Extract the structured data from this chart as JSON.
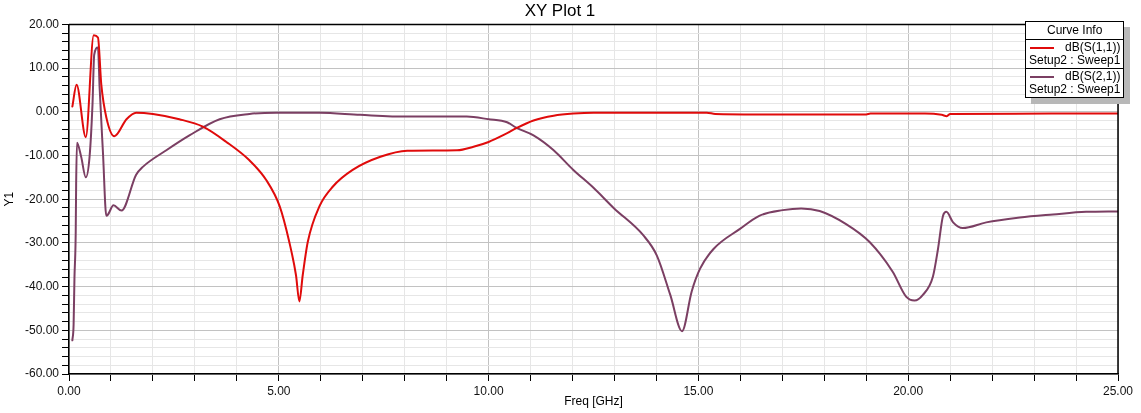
{
  "chart_data": {
    "type": "line",
    "title": "XY Plot 1",
    "xlabel": "Freq [GHz]",
    "ylabel": "Y1",
    "legend_title": "Curve Info",
    "series": [
      {
        "name": "dB(S(1,1))\nSetup2 : Sweep1",
        "color": "#e00b0b",
        "x": [
          0.08,
          0.18,
          0.4,
          0.59,
          0.69,
          0.77,
          0.89,
          1.08,
          1.37,
          1.6,
          2.0,
          2.63,
          3.19,
          3.75,
          4.3,
          4.7,
          5.02,
          5.25,
          5.41,
          5.49,
          5.57,
          5.69,
          5.97,
          6.29,
          6.76,
          7.42,
          8.06,
          9.25,
          9.64,
          10.0,
          10.36,
          10.67,
          11.07,
          11.55,
          12.02,
          12.5,
          15.2,
          15.4,
          16.4,
          19.0,
          19.1,
          20.4,
          20.8,
          20.92,
          21.0,
          25.0
        ],
        "values": [
          1.2,
          6.2,
          -5.8,
          17.5,
          17.0,
          6.2,
          -1.3,
          -5.6,
          -1.7,
          -0.2,
          -0.5,
          -1.7,
          -3.4,
          -6.9,
          -11.1,
          -15.6,
          -21.6,
          -29.8,
          -37.4,
          -43.4,
          -37.4,
          -29.8,
          -21.6,
          -17.1,
          -13.3,
          -10.3,
          -8.9,
          -8.8,
          -8.0,
          -6.9,
          -5.3,
          -3.7,
          -2.0,
          -0.9,
          -0.4,
          -0.2,
          -0.2,
          -0.5,
          -0.6,
          -0.6,
          -0.4,
          -0.4,
          -0.7,
          -1.0,
          -0.5,
          -0.4
        ]
      },
      {
        "name": "dB(S(2,1))\nSetup2 : Sweep1",
        "color": "#7b3f63",
        "x": [
          0.08,
          0.11,
          0.13,
          0.16,
          0.17,
          0.19,
          0.29,
          0.4,
          0.49,
          0.56,
          0.6,
          0.69,
          0.73,
          0.81,
          0.89,
          0.93,
          1.06,
          1.25,
          1.6,
          1.76,
          2.32,
          2.87,
          3.59,
          4.3,
          4.94,
          5.97,
          6.94,
          8.06,
          9.48,
          10.0,
          10.44,
          10.67,
          11.07,
          11.55,
          12.02,
          12.5,
          12.98,
          13.69,
          14.01,
          14.33,
          14.61,
          14.84,
          15.04,
          15.36,
          15.99,
          16.45,
          17.01,
          17.45,
          17.89,
          18.52,
          19.08,
          19.63,
          19.95,
          20.15,
          20.35,
          20.59,
          20.71,
          20.83,
          20.91,
          21.07,
          21.3,
          21.86,
          22.66,
          23.45,
          24.24,
          25.0
        ],
        "values": [
          -52.3,
          -48.6,
          -38.1,
          -27.6,
          -16.7,
          -7.1,
          -10.3,
          -15.0,
          -10.3,
          1.7,
          13.0,
          14.7,
          5.5,
          -9.5,
          -23.8,
          -23.5,
          -21.4,
          -22.6,
          -14.4,
          -12.6,
          -8.8,
          -5.4,
          -1.7,
          -0.5,
          -0.2,
          -0.2,
          -0.7,
          -1.1,
          -1.1,
          -1.7,
          -2.4,
          -3.7,
          -5.4,
          -8.8,
          -13.3,
          -17.4,
          -22.0,
          -28.3,
          -32.9,
          -41.9,
          -50.2,
          -41.1,
          -35.9,
          -31.4,
          -26.8,
          -23.8,
          -22.5,
          -22.1,
          -22.7,
          -25.7,
          -29.8,
          -36.6,
          -42.3,
          -43.2,
          -41.9,
          -37.7,
          -31.4,
          -23.8,
          -22.9,
          -25.3,
          -26.6,
          -25.3,
          -24.2,
          -23.5,
          -22.9,
          -22.8
        ]
      }
    ],
    "xlim": [
      0,
      25
    ],
    "xticks": [
      {
        "value": 0,
        "label": "0.00"
      },
      {
        "value": 1,
        "label": null
      },
      {
        "value": 2,
        "label": null
      },
      {
        "value": 3,
        "label": null
      },
      {
        "value": 4,
        "label": null
      },
      {
        "value": 5,
        "label": "5.00"
      },
      {
        "value": 6,
        "label": null
      },
      {
        "value": 7,
        "label": null
      },
      {
        "value": 8,
        "label": null
      },
      {
        "value": 9,
        "label": null
      },
      {
        "value": 10,
        "label": "10.00"
      },
      {
        "value": 11,
        "label": null
      },
      {
        "value": 12,
        "label": null
      },
      {
        "value": 13,
        "label": null
      },
      {
        "value": 14,
        "label": null
      },
      {
        "value": 15,
        "label": "15.00"
      },
      {
        "value": 16,
        "label": null
      },
      {
        "value": 17,
        "label": null
      },
      {
        "value": 18,
        "label": null
      },
      {
        "value": 19,
        "label": null
      },
      {
        "value": 20,
        "label": "20.00"
      },
      {
        "value": 21,
        "label": null
      },
      {
        "value": 22,
        "label": null
      },
      {
        "value": 23,
        "label": null
      },
      {
        "value": 24,
        "label": null
      },
      {
        "value": 25,
        "label": "25.00"
      }
    ],
    "ylim": [
      -60,
      20
    ],
    "yticks": [
      {
        "value": -60,
        "label": "-60.00"
      },
      {
        "value": -58,
        "label": null
      },
      {
        "value": -56,
        "label": null
      },
      {
        "value": -54,
        "label": null
      },
      {
        "value": -52,
        "label": null
      },
      {
        "value": -50,
        "label": "-50.00"
      },
      {
        "value": -48,
        "label": null
      },
      {
        "value": -46,
        "label": null
      },
      {
        "value": -44,
        "label": null
      },
      {
        "value": -42,
        "label": null
      },
      {
        "value": -40,
        "label": "-40.00"
      },
      {
        "value": -38,
        "label": null
      },
      {
        "value": -36,
        "label": null
      },
      {
        "value": -34,
        "label": null
      },
      {
        "value": -32,
        "label": null
      },
      {
        "value": -30,
        "label": "-30.00"
      },
      {
        "value": -28,
        "label": null
      },
      {
        "value": -26,
        "label": null
      },
      {
        "value": -24,
        "label": null
      },
      {
        "value": -22,
        "label": null
      },
      {
        "value": -20,
        "label": "-20.00"
      },
      {
        "value": -18,
        "label": null
      },
      {
        "value": -16,
        "label": null
      },
      {
        "value": -14,
        "label": null
      },
      {
        "value": -12,
        "label": null
      },
      {
        "value": -10,
        "label": "-10.00"
      },
      {
        "value": -8,
        "label": null
      },
      {
        "value": -6,
        "label": null
      },
      {
        "value": -4,
        "label": null
      },
      {
        "value": -2,
        "label": null
      },
      {
        "value": 0,
        "label": "0.00"
      },
      {
        "value": 2,
        "label": null
      },
      {
        "value": 4,
        "label": null
      },
      {
        "value": 6,
        "label": null
      },
      {
        "value": 8,
        "label": null
      },
      {
        "value": 10,
        "label": "10.00"
      },
      {
        "value": 12,
        "label": null
      },
      {
        "value": 14,
        "label": null
      },
      {
        "value": 16,
        "label": null
      },
      {
        "value": 18,
        "label": null
      },
      {
        "value": 20,
        "label": "20.00"
      }
    ],
    "grid": true,
    "legend": "top right"
  }
}
